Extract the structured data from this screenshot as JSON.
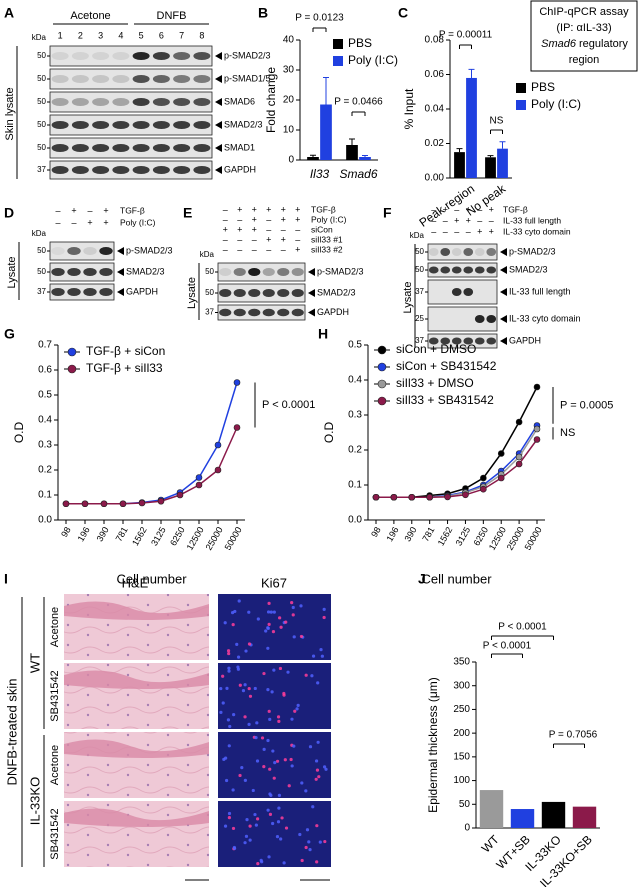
{
  "chart_data": [
    {
      "type": "bar",
      "panel": "B",
      "ylabel": "Fold change",
      "categories": [
        "Il33",
        "Smad6"
      ],
      "series": [
        {
          "name": "PBS",
          "color": "#000000",
          "values": [
            1.0,
            5.0
          ],
          "errors": [
            0.6,
            2.0
          ]
        },
        {
          "name": "Poly (I:C)",
          "color": "#2040e0",
          "values": [
            18.5,
            1.0
          ],
          "errors": [
            9.0,
            0.5
          ]
        }
      ],
      "ylim": [
        0,
        40
      ],
      "yticks": [
        0,
        10,
        20,
        30,
        40
      ],
      "annotations": [
        "P = 0.0123",
        "P = 0.0466"
      ]
    },
    {
      "type": "bar",
      "panel": "C",
      "ylabel": "% Input",
      "categories": [
        "Peak region",
        "No peak"
      ],
      "series": [
        {
          "name": "PBS",
          "color": "#000000",
          "values": [
            0.015,
            0.012
          ],
          "errors": [
            0.002,
            0.001
          ]
        },
        {
          "name": "Poly (I:C)",
          "color": "#2040e0",
          "values": [
            0.058,
            0.017
          ],
          "errors": [
            0.005,
            0.004
          ]
        }
      ],
      "ylim": [
        0,
        0.08
      ],
      "yticks": [
        {
          "value": 0,
          "label": "0.00"
        },
        0.02,
        0.04,
        0.06,
        0.08
      ],
      "annotations": [
        "P = 0.00011",
        "NS"
      ],
      "box": [
        "ChIP-qPCR assay",
        "(IP: αIL-33)",
        {
          "gene": "Smad6",
          "rest": "regulatory"
        },
        "region"
      ]
    },
    {
      "type": "line",
      "panel": "G",
      "xlabel": "Cell number",
      "ylabel": "O.D",
      "categories": [
        "98",
        "196",
        "390",
        "781",
        "1562",
        "3125",
        "6250",
        "12500",
        "25000",
        "50000"
      ],
      "series": [
        {
          "name": "TGF-β + siCon",
          "color": "#2040e0",
          "values": [
            0.065,
            0.065,
            0.065,
            0.065,
            0.07,
            0.08,
            0.11,
            0.17,
            0.3,
            0.55
          ]
        },
        {
          "name": "TGF-β + siIl33",
          "color": "#8b1a4a",
          "values": [
            0.065,
            0.065,
            0.065,
            0.065,
            0.068,
            0.075,
            0.1,
            0.14,
            0.2,
            0.37
          ]
        }
      ],
      "ylim": [
        0,
        0.7
      ],
      "yticks": [
        {
          "value": 0,
          "label": "0.0"
        },
        0.1,
        0.2,
        0.3,
        0.4,
        0.5,
        0.6,
        0.7
      ],
      "annotations": [
        "P < 0.0001"
      ]
    },
    {
      "type": "line",
      "panel": "H",
      "xlabel": "Cell number",
      "ylabel": "O.D",
      "categories": [
        "98",
        "196",
        "390",
        "781",
        "1562",
        "3125",
        "6250",
        "12500",
        "25000",
        "50000"
      ],
      "series": [
        {
          "name": "siCon + DMSO",
          "color": "#000000",
          "values": [
            0.065,
            0.065,
            0.065,
            0.07,
            0.075,
            0.09,
            0.12,
            0.19,
            0.28,
            0.38
          ]
        },
        {
          "name": "siCon + SB431542",
          "color": "#2040e0",
          "values": [
            0.065,
            0.065,
            0.065,
            0.065,
            0.07,
            0.08,
            0.1,
            0.14,
            0.19,
            0.27
          ]
        },
        {
          "name": "siIl33 + DMSO",
          "color": "#9a9a9a",
          "values": [
            0.065,
            0.065,
            0.065,
            0.065,
            0.068,
            0.078,
            0.095,
            0.13,
            0.18,
            0.26
          ]
        },
        {
          "name": "siIl33 + SB431542",
          "color": "#8b1a4a",
          "values": [
            0.065,
            0.065,
            0.065,
            0.065,
            0.066,
            0.072,
            0.088,
            0.12,
            0.16,
            0.23
          ]
        }
      ],
      "ylim": [
        0,
        0.5
      ],
      "yticks": [
        {
          "value": 0,
          "label": "0.0"
        },
        0.1,
        0.2,
        0.3,
        0.4,
        0.5
      ],
      "annotations": [
        "P = 0.0005",
        "NS"
      ]
    },
    {
      "type": "bar",
      "panel": "J",
      "ylabel": "Epidermal thickness (μm)",
      "categories": [
        "WT",
        "WT+SB",
        "IL-33KO",
        "IL-33KO+SB"
      ],
      "values": [
        80,
        40,
        55,
        45
      ],
      "colors": [
        "#9a9a9a",
        "#2040e0",
        "#000000",
        "#8b1a4a"
      ],
      "ylim": [
        0,
        350
      ],
      "yticks": [
        0,
        50,
        100,
        150,
        200,
        250,
        300,
        350
      ],
      "annotations": [
        "P < 0.0001",
        "P < 0.0001",
        "P = 0.7056"
      ]
    }
  ],
  "blots": {
    "A": {
      "panel": "A",
      "groups": [
        "Acetone",
        "DNFB"
      ],
      "lanes": [
        "1",
        "2",
        "3",
        "4",
        "5",
        "6",
        "7",
        "8"
      ],
      "kda_label": "kDa",
      "side_label": "Skin lysate",
      "rows": [
        {
          "kda": "50",
          "band": "p-SMAD2/3"
        },
        {
          "kda": "50",
          "band": "p-SMAD1/5"
        },
        {
          "kda": "50",
          "band": "SMAD6"
        },
        {
          "kda": "50",
          "band": "SMAD2/3"
        },
        {
          "kda": "50",
          "band": "SMAD1"
        },
        {
          "kda": "37",
          "band": "GAPDH"
        }
      ]
    },
    "D": {
      "panel": "D",
      "kda_label": "kDa",
      "side_label": "Lysate",
      "conditions": [
        {
          "name": "TGF-β",
          "signs": [
            "–",
            "+",
            "–",
            "+"
          ]
        },
        {
          "name": "Poly (I:C)",
          "signs": [
            "–",
            "–",
            "+",
            "+"
          ]
        }
      ],
      "rows": [
        {
          "kda": "50",
          "band": "p-SMAD2/3"
        },
        {
          "kda": "50",
          "band": "SMAD2/3"
        },
        {
          "kda": "37",
          "band": "GAPDH"
        }
      ]
    },
    "E": {
      "panel": "E",
      "kda_label": "kDa",
      "side_label": "Lysate",
      "conditions": [
        {
          "name": "TGF-β",
          "signs": [
            "–",
            "+",
            "+",
            "+",
            "+",
            "+"
          ]
        },
        {
          "name": "Poly (I:C)",
          "signs": [
            "–",
            "–",
            "+",
            "–",
            "+",
            "+"
          ]
        },
        {
          "name": "siCon",
          "signs": [
            "+",
            "+",
            "+",
            "–",
            "–",
            "–"
          ]
        },
        {
          "name": "siIl33 #1",
          "signs": [
            "–",
            "–",
            "–",
            "+",
            "+",
            "–"
          ]
        },
        {
          "name": "siIl33 #2",
          "signs": [
            "–",
            "–",
            "–",
            "–",
            "–",
            "+"
          ]
        }
      ],
      "rows": [
        {
          "kda": "50",
          "band": "p-SMAD2/3"
        },
        {
          "kda": "50",
          "band": "SMAD2/3"
        },
        {
          "kda": "37",
          "band": "GAPDH"
        }
      ]
    },
    "F": {
      "panel": "F",
      "kda_label": "kDa",
      "side_label": "Lysate",
      "conditions": [
        {
          "name": "TGF-β",
          "signs": [
            "–",
            "+",
            "–",
            "+",
            "–",
            "+"
          ]
        },
        {
          "name": "IL-33 full length",
          "signs": [
            "–",
            "–",
            "+",
            "+",
            "–",
            "–"
          ]
        },
        {
          "name": "IL-33 cyto domain",
          "signs": [
            "–",
            "–",
            "–",
            "–",
            "+",
            "+"
          ]
        }
      ],
      "rows": [
        {
          "kda": "50",
          "band": "p-SMAD2/3"
        },
        {
          "kda": "50",
          "band": "SMAD2/3"
        },
        {
          "kda": "37",
          "band": "IL-33 full length"
        },
        {
          "kda": "25",
          "band": "IL-33 cyto domain"
        },
        {
          "kda": "37",
          "band": "GAPDH"
        }
      ]
    }
  },
  "histology": {
    "panel": "I",
    "columns": [
      "H&E",
      "Ki67"
    ],
    "side_label": "DNFB-treated skin",
    "genotypes": [
      "WT",
      "IL-33KO"
    ],
    "rows": [
      "Acetone",
      "SB431542",
      "Acetone",
      "SB431542"
    ]
  }
}
